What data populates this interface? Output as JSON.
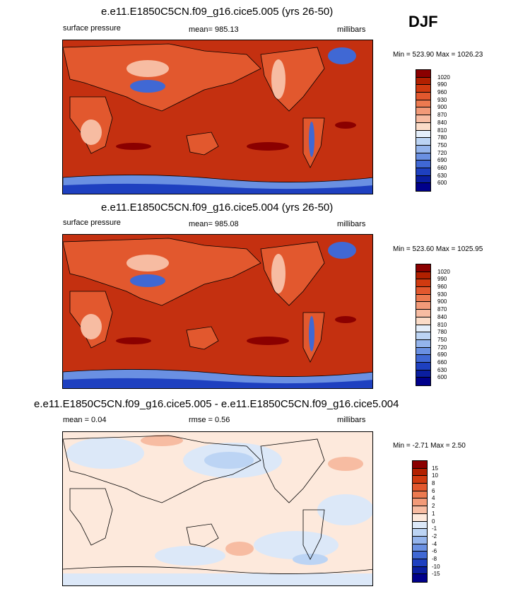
{
  "season": "DJF",
  "panels": [
    {
      "title": "e.e11.E1850C5CN.f09_g16.cice5.005 (yrs 26-50)",
      "left_label": "surface pressure",
      "center_label": "mean= 985.13",
      "right_label": "millibars",
      "minmax": "Min = 523.90 Max = 1026.23"
    },
    {
      "title": "e.e11.E1850C5CN.f09_g16.cice5.004 (yrs 26-50)",
      "left_label": "surface pressure",
      "center_label": "mean= 985.08",
      "right_label": "millibars",
      "minmax": "Min = 523.60 Max = 1025.95"
    },
    {
      "title": "e.e11.E1850C5CN.f09_g16.cice5.005 - e.e11.E1850C5CN.f09_g16.cice5.004",
      "left_label": "mean =   0.04",
      "center_label": "rmse =   0.56",
      "right_label": "millibars",
      "minmax": "Min =  -2.71 Max =   2.50"
    }
  ],
  "colorbars": {
    "abs": {
      "labels": [
        "1020",
        "990",
        "960",
        "930",
        "900",
        "870",
        "840",
        "810",
        "780",
        "750",
        "720",
        "690",
        "660",
        "630",
        "600"
      ],
      "colors": [
        "#8b0000",
        "#b22000",
        "#d03a10",
        "#e2582e",
        "#ec7a50",
        "#f29a78",
        "#f7bca2",
        "#fbdcc8",
        "#e4eefa",
        "#bcd4f4",
        "#94b4ec",
        "#6a90e2",
        "#4068d4",
        "#1e40c0",
        "#0a1ea0",
        "#00008b"
      ]
    },
    "diff": {
      "labels": [
        "15",
        "10",
        "8",
        "6",
        "4",
        "2",
        "1",
        "0",
        "-1",
        "-2",
        "-4",
        "-6",
        "-8",
        "-10",
        "-15"
      ],
      "colors": [
        "#8b0000",
        "#b22000",
        "#d03a10",
        "#e2582e",
        "#ec7a50",
        "#f29a78",
        "#f7bca2",
        "#fde9dc",
        "#dce8f8",
        "#bcd4f4",
        "#94b4ec",
        "#6a90e2",
        "#4068d4",
        "#1e40c0",
        "#0a1ea0",
        "#00008b"
      ]
    }
  }
}
